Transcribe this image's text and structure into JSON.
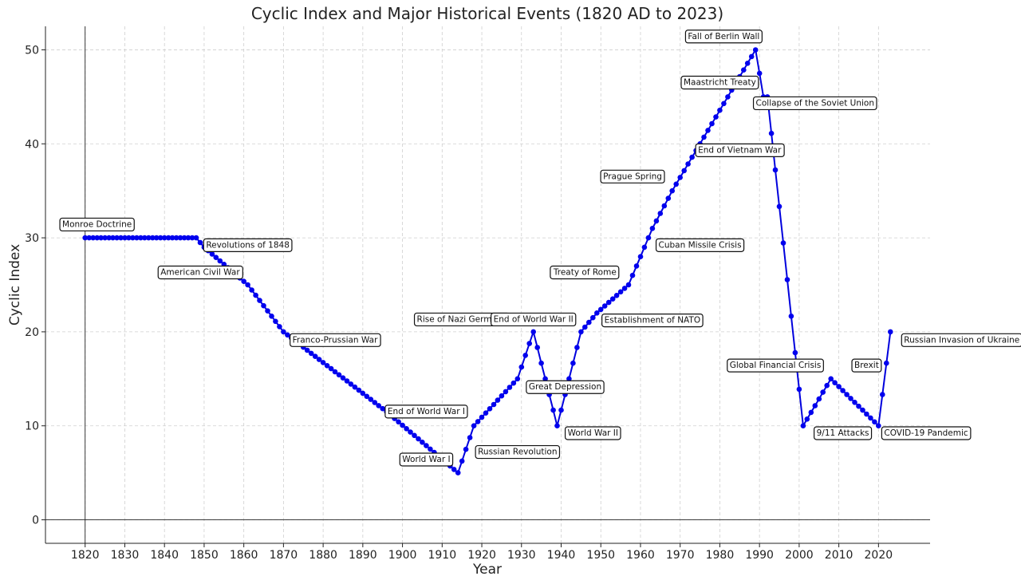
{
  "chart_data": {
    "type": "line",
    "title": "Cyclic Index and Major Historical Events (1820 AD to 2023)",
    "xlabel": "Year",
    "ylabel": "Cyclic Index",
    "xlim": [
      1810,
      2033
    ],
    "ylim": [
      -2.5,
      52.5
    ],
    "xticks": [
      1820,
      1830,
      1840,
      1850,
      1860,
      1870,
      1880,
      1890,
      1900,
      1910,
      1920,
      1930,
      1940,
      1950,
      1960,
      1970,
      1980,
      1990,
      2000,
      2010,
      2020
    ],
    "yticks": [
      0,
      10,
      20,
      30,
      40,
      50
    ],
    "grid": true,
    "color": "#0000ee",
    "marker": "circle",
    "keypoints": [
      [
        1820,
        30
      ],
      [
        1848,
        30
      ],
      [
        1850,
        29
      ],
      [
        1861,
        25
      ],
      [
        1870,
        20
      ],
      [
        1896,
        11.5
      ],
      [
        1914,
        5
      ],
      [
        1918,
        10
      ],
      [
        1929,
        15
      ],
      [
        1933,
        20
      ],
      [
        1939,
        10
      ],
      [
        1945,
        20
      ],
      [
        1949,
        22
      ],
      [
        1957,
        25
      ],
      [
        1961,
        29
      ],
      [
        1963,
        31
      ],
      [
        1968,
        35
      ],
      [
        1989,
        50
      ],
      [
        1991,
        45
      ],
      [
        1992,
        45
      ],
      [
        2001,
        10
      ],
      [
        2008,
        15
      ],
      [
        2020,
        10
      ],
      [
        2023,
        20
      ]
    ],
    "annotations": [
      {
        "text": "Monroe Doctrine",
        "x": 1823,
        "y": 31.5
      },
      {
        "text": "Revolutions of 1848",
        "x": 1861,
        "y": 29.3
      },
      {
        "text": "American Civil War",
        "x": 1849,
        "y": 26.4
      },
      {
        "text": "Franco-Prussian War",
        "x": 1883,
        "y": 19.2
      },
      {
        "text": "End of World War I",
        "x": 1906,
        "y": 11.6
      },
      {
        "text": "World War I",
        "x": 1906,
        "y": 6.5
      },
      {
        "text": "Russian Revolution",
        "x": 1929,
        "y": 7.3
      },
      {
        "text": "Rise of Nazi Germany",
        "x": 1915,
        "y": 21.4
      },
      {
        "text": "End of World War II",
        "x": 1933,
        "y": 21.4
      },
      {
        "text": "Great Depression",
        "x": 1941,
        "y": 14.2
      },
      {
        "text": "World War II",
        "x": 1948,
        "y": 9.3
      },
      {
        "text": "Establishment of NATO",
        "x": 1963,
        "y": 21.3
      },
      {
        "text": "Treaty of Rome",
        "x": 1946,
        "y": 26.4
      },
      {
        "text": "Prague Spring",
        "x": 1958,
        "y": 36.6
      },
      {
        "text": "Cuban Missile Crisis",
        "x": 1975,
        "y": 29.3
      },
      {
        "text": "End of Vietnam War",
        "x": 1985,
        "y": 39.4
      },
      {
        "text": "Maastricht Treaty",
        "x": 1980,
        "y": 46.6
      },
      {
        "text": "Fall of Berlin Wall",
        "x": 1981,
        "y": 51.5
      },
      {
        "text": "Collapse of the Soviet Union",
        "x": 2004,
        "y": 44.4
      },
      {
        "text": "Global Financial Crisis",
        "x": 1994,
        "y": 16.5
      },
      {
        "text": "Brexit",
        "x": 2017,
        "y": 16.5
      },
      {
        "text": "9/11 Attacks",
        "x": 2011,
        "y": 9.3
      },
      {
        "text": "COVID-19 Pandemic",
        "x": 2032,
        "y": 9.3
      },
      {
        "text": "Russian Invasion of Ukraine",
        "x": 2041,
        "y": 19.2
      }
    ]
  }
}
